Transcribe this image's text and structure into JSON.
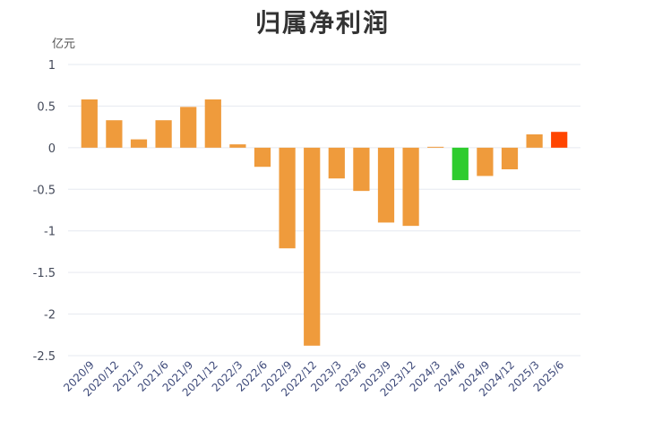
{
  "chart_data": {
    "type": "bar",
    "title": "归属净利润",
    "ylabel": "亿元",
    "xlabel": "",
    "ylim": [
      -2.5,
      1
    ],
    "yticks": [
      "1",
      "0.5",
      "0",
      "-0.5",
      "-1",
      "-1.5",
      "-2",
      "-2.5"
    ],
    "yticks_values": [
      1,
      0.5,
      0,
      -0.5,
      -1,
      -1.5,
      -2,
      -2.5
    ],
    "grid": true,
    "categories": [
      "2020/9",
      "2020/12",
      "2021/3",
      "2021/6",
      "2021/9",
      "2021/12",
      "2022/3",
      "2022/6",
      "2022/9",
      "2022/12",
      "2023/3",
      "2023/6",
      "2023/9",
      "2023/12",
      "2024/3",
      "2024/6",
      "2024/9",
      "2024/12",
      "2025/3",
      "2025/6"
    ],
    "values": [
      0.58,
      0.33,
      0.1,
      0.33,
      0.49,
      0.58,
      0.04,
      -0.23,
      -1.21,
      -2.38,
      -0.37,
      -0.52,
      -0.9,
      -0.94,
      0.01,
      -0.39,
      -0.34,
      -0.26,
      0.16,
      0.19
    ],
    "colors": [
      "#ef9b3c",
      "#ef9b3c",
      "#ef9b3c",
      "#ef9b3c",
      "#ef9b3c",
      "#ef9b3c",
      "#ef9b3c",
      "#ef9b3c",
      "#ef9b3c",
      "#ef9b3c",
      "#ef9b3c",
      "#ef9b3c",
      "#ef9b3c",
      "#ef9b3c",
      "#ef9b3c",
      "#2ecc2e",
      "#ef9b3c",
      "#ef9b3c",
      "#ef9b3c",
      "#ff4500"
    ]
  }
}
